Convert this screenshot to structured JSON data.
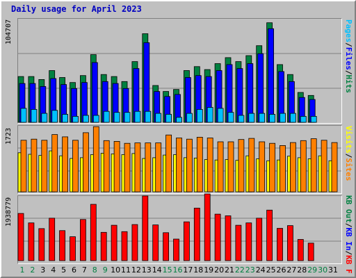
{
  "title": "Daily usage for April 2023",
  "colors": {
    "hits": "#008040",
    "files": "#0000ff",
    "pages": "#00c0ff",
    "visits": "#ffff00",
    "sites": "#ff8000",
    "kbout": "#008040",
    "kbin": "#0000ff",
    "kbf": "#ff0000",
    "title": "#0000c0"
  },
  "chart_data": [
    {
      "type": "bar",
      "panel": "hits-files-pages",
      "ymax_label": "104707",
      "ylim": [
        0,
        104707
      ],
      "categories": [
        "1",
        "2",
        "3",
        "4",
        "5",
        "6",
        "7",
        "8",
        "9",
        "10",
        "11",
        "12",
        "13",
        "14",
        "15",
        "16",
        "17",
        "18",
        "19",
        "20",
        "21",
        "22",
        "23",
        "24",
        "25",
        "26",
        "27",
        "28",
        "29",
        "30",
        "31"
      ],
      "series": [
        {
          "name": "Hits",
          "values": [
            46000,
            46000,
            43000,
            52000,
            45000,
            40000,
            47000,
            68000,
            48000,
            46000,
            41000,
            61000,
            89000,
            37000,
            31000,
            33000,
            52000,
            56000,
            53000,
            59000,
            65000,
            61000,
            67000,
            77000,
            100000,
            58000,
            48000,
            30000,
            27000,
            0,
            0
          ]
        },
        {
          "name": "Files",
          "values": [
            39000,
            39000,
            36000,
            44000,
            38000,
            34000,
            40000,
            60000,
            41000,
            39000,
            34000,
            54000,
            80000,
            31000,
            26000,
            28000,
            45000,
            47000,
            46000,
            52000,
            58000,
            54000,
            59000,
            69000,
            94000,
            51000,
            41000,
            25000,
            23000,
            0,
            0
          ]
        },
        {
          "name": "Pages",
          "values": [
            14000,
            13000,
            9000,
            12000,
            8000,
            6000,
            7000,
            7000,
            11000,
            10000,
            10000,
            11000,
            11000,
            9000,
            8000,
            5000,
            9000,
            13000,
            15000,
            14000,
            10000,
            7000,
            9000,
            9000,
            8000,
            9000,
            9000,
            6000,
            6000,
            0,
            0
          ]
        }
      ],
      "series_labels": [
        "Pages",
        "Files",
        "Hits"
      ]
    },
    {
      "type": "bar",
      "panel": "sites-visits",
      "ymax_label": "1723",
      "ylim": [
        0,
        1723
      ],
      "categories": [
        "1",
        "2",
        "3",
        "4",
        "5",
        "6",
        "7",
        "8",
        "9",
        "10",
        "11",
        "12",
        "13",
        "14",
        "15",
        "16",
        "17",
        "18",
        "19",
        "20",
        "21",
        "22",
        "23",
        "24",
        "25",
        "26",
        "27",
        "28",
        "29",
        "30",
        "31"
      ],
      "series": [
        {
          "name": "Sites",
          "values": [
            1360,
            1390,
            1360,
            1510,
            1450,
            1360,
            1560,
            1720,
            1350,
            1330,
            1280,
            1290,
            1290,
            1290,
            1500,
            1420,
            1390,
            1440,
            1420,
            1320,
            1320,
            1380,
            1410,
            1320,
            1280,
            1220,
            1300,
            1350,
            1400,
            1360,
            1300
          ]
        },
        {
          "name": "Visits",
          "values": [
            1030,
            990,
            960,
            1080,
            950,
            880,
            900,
            980,
            1020,
            1000,
            980,
            1010,
            880,
            900,
            970,
            980,
            900,
            890,
            850,
            840,
            850,
            830,
            950,
            870,
            820,
            840,
            940,
            900,
            870,
            950,
            820
          ]
        }
      ],
      "series_labels": [
        "Visits",
        "Sites"
      ]
    },
    {
      "type": "bar",
      "panel": "kbf",
      "ymax_label": "1938779",
      "ylim": [
        0,
        1938779
      ],
      "categories": [
        "1",
        "2",
        "3",
        "4",
        "5",
        "6",
        "7",
        "8",
        "9",
        "10",
        "11",
        "12",
        "13",
        "14",
        "15",
        "16",
        "17",
        "18",
        "19",
        "20",
        "21",
        "22",
        "23",
        "24",
        "25",
        "26",
        "27",
        "28",
        "29",
        "30",
        "31"
      ],
      "series": [
        {
          "name": "KB F",
          "values": [
            1400000,
            1120000,
            950000,
            1260000,
            890000,
            710000,
            1220000,
            1670000,
            840000,
            1050000,
            860000,
            1070000,
            1920000,
            1060000,
            830000,
            640000,
            1150000,
            1560000,
            1980000,
            1380000,
            1330000,
            1050000,
            1120000,
            1260000,
            1500000,
            960000,
            1040000,
            630000,
            520000,
            0,
            0
          ]
        }
      ],
      "series_labels": [
        "KB F",
        "KB In",
        "KB Out"
      ]
    }
  ],
  "x_axis": {
    "days": [
      "1",
      "2",
      "3",
      "4",
      "5",
      "6",
      "7",
      "8",
      "9",
      "10",
      "11",
      "12",
      "13",
      "14",
      "15",
      "16",
      "17",
      "18",
      "19",
      "20",
      "21",
      "22",
      "23",
      "24",
      "25",
      "26",
      "27",
      "28",
      "29",
      "30",
      "31"
    ],
    "weekend_days": [
      "1",
      "2",
      "8",
      "9",
      "15",
      "16",
      "22",
      "23",
      "29",
      "30"
    ]
  }
}
